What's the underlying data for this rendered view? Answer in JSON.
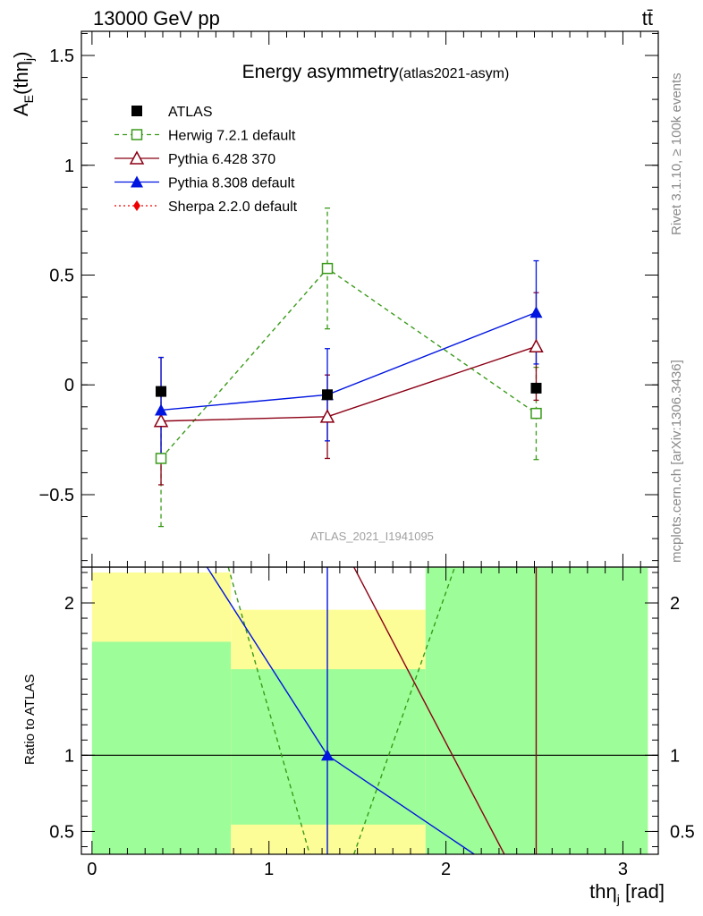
{
  "header": {
    "left": "13000 GeV pp",
    "right": "tt̄"
  },
  "watermarks": {
    "rivet": "Rivet 3.1.10, ≥ 100k events",
    "mcplots": "mcplots.cern.ch [arXiv:1306.3436]",
    "analysis": "ATLAS_2021_I1941095"
  },
  "colors": {
    "atlas": "#000000",
    "herwig": "#3a9a1a",
    "pythia6": "#8b0015",
    "pythia8": "#0015e0",
    "sherpa": "#ee0000",
    "band_inner": "#9dfd98",
    "band_outer": "#fdfd98"
  },
  "chart_data": [
    {
      "type": "scatter",
      "title": "Energy asymmetry",
      "title_sub": "(atlas2021-asym)",
      "ylabel_main": "A",
      "ylabel_sub": "E",
      "ylabel_rest": "(thη",
      "ylabel_sub2": "j",
      "ylabel_close": ")",
      "xlim": [
        -0.06,
        3.2
      ],
      "ylim": [
        -0.83,
        1.61
      ],
      "yticks": [
        -0.5,
        0,
        0.5,
        1,
        1.5
      ],
      "ytick_labels": [
        "−0.5",
        "0",
        "0.5",
        "1",
        "1.5"
      ],
      "legend_position": "top-left",
      "series": [
        {
          "name": "ATLAS",
          "key": "atlas",
          "marker": "square-filled",
          "line": "none",
          "x": [
            0.39,
            1.33,
            2.51
          ],
          "y": [
            -0.03,
            -0.045,
            -0.015
          ],
          "err": [
            0.0,
            0.0,
            0.0
          ]
        },
        {
          "name": "Herwig 7.2.1 default",
          "key": "herwig",
          "marker": "square-open",
          "line": "dashed",
          "x": [
            0.39,
            1.33,
            2.51
          ],
          "y": [
            -0.335,
            0.53,
            -0.13
          ],
          "err": [
            0.31,
            0.275,
            0.21
          ]
        },
        {
          "name": "Pythia 6.428 370",
          "key": "pythia6",
          "marker": "triangle-open",
          "line": "solid",
          "x": [
            0.39,
            1.33,
            2.51
          ],
          "y": [
            -0.165,
            -0.145,
            0.175
          ],
          "err": [
            0.29,
            0.19,
            0.245
          ]
        },
        {
          "name": "Pythia 8.308 default",
          "key": "pythia8",
          "marker": "triangle-filled",
          "line": "solid",
          "x": [
            0.39,
            1.33,
            2.51
          ],
          "y": [
            -0.115,
            -0.045,
            0.33
          ],
          "err": [
            0.24,
            0.21,
            0.235
          ]
        },
        {
          "name": "Sherpa 2.2.0 default",
          "key": "sherpa",
          "marker": "diamond-filled",
          "line": "dotted",
          "x": [],
          "y": [],
          "err": []
        }
      ]
    },
    {
      "type": "line",
      "ylabel": "Ratio to ATLAS",
      "xlabel_main": "thη",
      "xlabel_sub": "j",
      "xlabel_rest": " [rad]",
      "xlim": [
        -0.06,
        3.2
      ],
      "ylim": [
        0.35,
        2.235
      ],
      "yticks": [
        0.5,
        1,
        2
      ],
      "ytick_labels": [
        "0.5",
        "1",
        "2"
      ],
      "xticks": [
        0,
        1,
        2,
        3
      ],
      "xtick_labels": [
        "0",
        "1",
        "2",
        "3"
      ],
      "bands": [
        {
          "x0": 0.0,
          "x1": 0.785,
          "inner": [
            0.35,
            1.745
          ],
          "outer": [
            0.35,
            2.2
          ]
        },
        {
          "x0": 0.785,
          "x1": 1.885,
          "inner": [
            0.545,
            1.565
          ],
          "outer": [
            0.35,
            1.955
          ]
        },
        {
          "x0": 1.885,
          "x1": 3.141,
          "inner": [
            0.35,
            2.235
          ],
          "outer": [
            0.35,
            2.235
          ]
        }
      ],
      "ratio_lines": [
        {
          "key": "herwig",
          "dash": "5,4",
          "points": [
            [
              0.77,
              2.235
            ],
            [
              1.23,
              0.35
            ]
          ]
        },
        {
          "key": "herwig",
          "dash": "5,4",
          "points": [
            [
              1.48,
              0.35
            ],
            [
              2.05,
              2.235
            ]
          ]
        },
        {
          "key": "pythia8",
          "dash": "",
          "points": [
            [
              0.65,
              2.235
            ],
            [
              1.33,
              1.0
            ],
            [
              2.16,
              0.35
            ]
          ]
        },
        {
          "key": "pythia8",
          "dash": "",
          "points": [
            [
              1.33,
              0.35
            ],
            [
              1.33,
              2.235
            ]
          ]
        },
        {
          "key": "pythia6",
          "dash": "",
          "points": [
            [
              1.48,
              2.235
            ],
            [
              2.33,
              0.35
            ]
          ]
        },
        {
          "key": "pythia6",
          "dash": "",
          "points": [
            [
              2.51,
              0.35
            ],
            [
              2.51,
              2.235
            ]
          ]
        }
      ],
      "ratio_markers": [
        {
          "key": "pythia8",
          "x": 1.33,
          "y": 1.0
        }
      ]
    }
  ]
}
